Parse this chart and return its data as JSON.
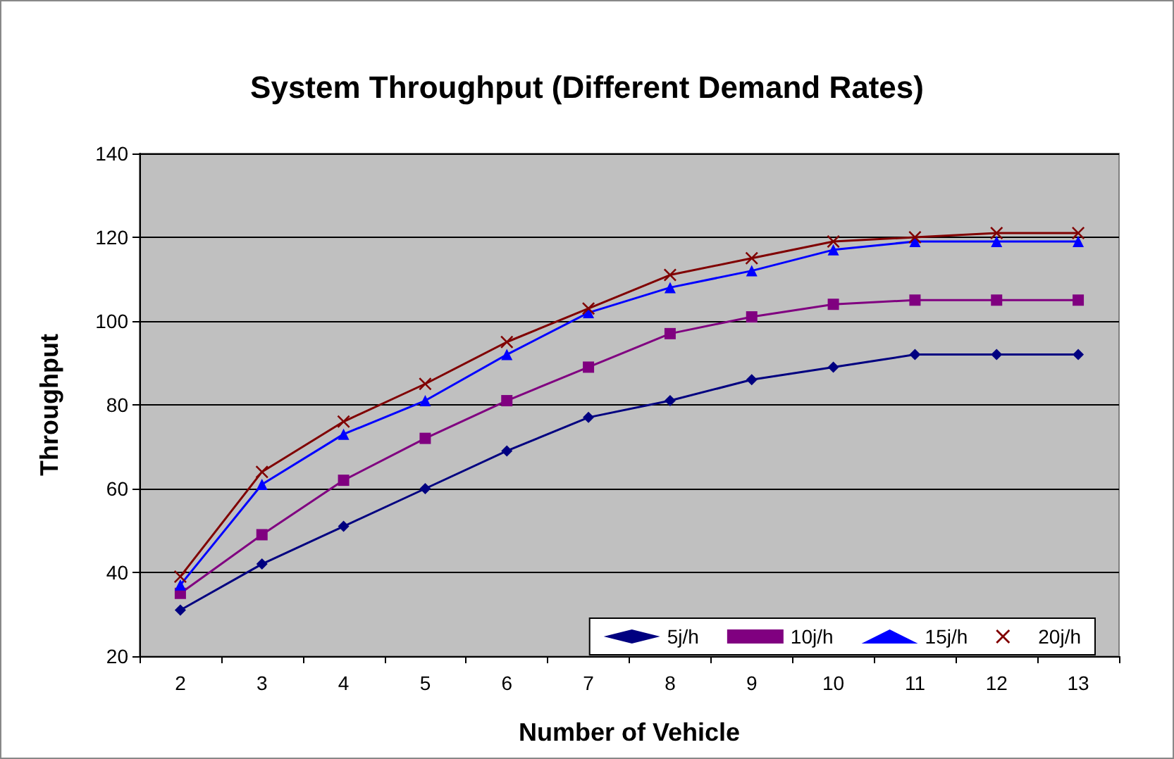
{
  "chart_data": {
    "type": "line",
    "title": "System Throughput (Different Demand Rates)",
    "xlabel": "Number of Vehicle",
    "ylabel": "Throughput",
    "categories": [
      "2",
      "3",
      "4",
      "5",
      "6",
      "7",
      "8",
      "9",
      "10",
      "11",
      "12",
      "13"
    ],
    "series": [
      {
        "name": "5j/h",
        "color": "#000080",
        "marker": "diamond",
        "values": [
          31,
          42,
          51,
          60,
          69,
          77,
          81,
          86,
          89,
          92,
          92,
          92
        ]
      },
      {
        "name": "10j/h",
        "color": "#800080",
        "marker": "square",
        "values": [
          35,
          49,
          62,
          72,
          81,
          89,
          97,
          101,
          104,
          105,
          105,
          105
        ]
      },
      {
        "name": "15j/h",
        "color": "#0000ff",
        "marker": "triangle",
        "values": [
          37,
          61,
          73,
          81,
          92,
          102,
          108,
          112,
          117,
          119,
          119,
          119
        ]
      },
      {
        "name": "20j/h",
        "color": "#800000",
        "marker": "cross",
        "values": [
          39,
          64,
          76,
          85,
          95,
          103,
          111,
          115,
          119,
          120,
          121,
          121
        ]
      }
    ],
    "ylim": [
      20,
      140
    ],
    "yticks": [
      20,
      40,
      60,
      80,
      100,
      120,
      140
    ],
    "grid": "y",
    "legend": "bottom right",
    "line_style": "solid"
  }
}
